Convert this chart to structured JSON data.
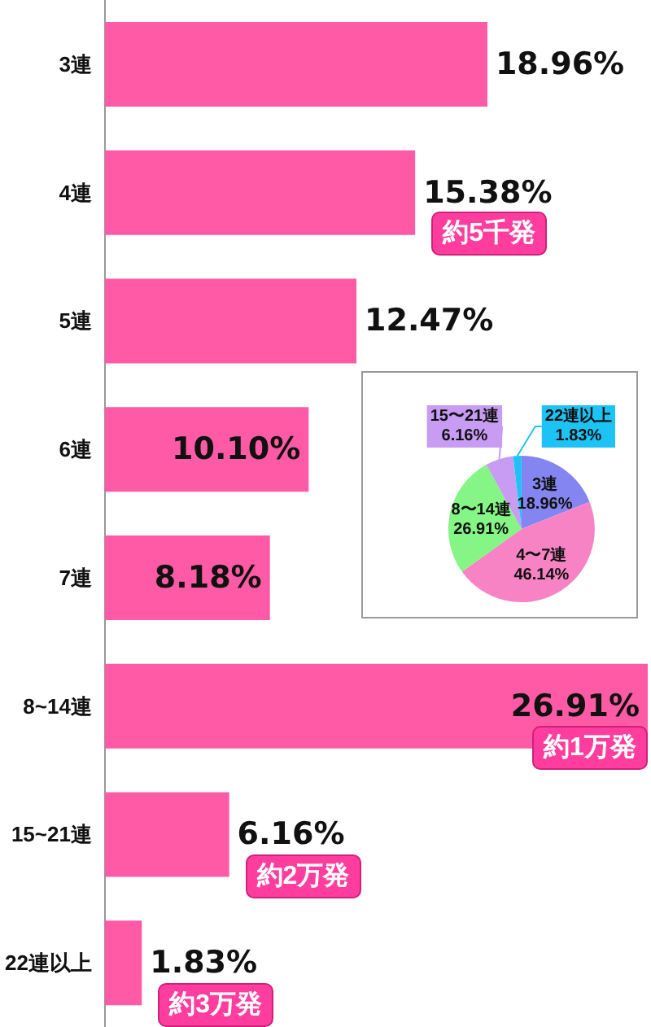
{
  "chart_data": [
    {
      "type": "bar",
      "orientation": "horizontal",
      "categories": [
        "3連",
        "4連",
        "5連",
        "6連",
        "7連",
        "8~14連",
        "15~21連",
        "22連以上"
      ],
      "values": [
        18.96,
        15.38,
        12.47,
        10.1,
        8.18,
        26.91,
        6.16,
        1.83
      ],
      "color": "#ff5aa5",
      "value_labels": [
        "18.96%",
        "15.38%",
        "12.47%",
        "10.10%",
        "8.18%",
        "26.91%",
        "6.16%",
        "1.83%"
      ],
      "grid": false,
      "legend": false,
      "annotations": [
        {
          "text": "約5千発",
          "x": 15.38,
          "y": "4連"
        },
        {
          "text": "約1万発",
          "x": 26.91,
          "y": "8~14連"
        },
        {
          "text": "約2万発",
          "x": 6.16,
          "y": "15~21連"
        },
        {
          "text": "約3万発",
          "x": 1.83,
          "y": "22連以上"
        }
      ]
    },
    {
      "type": "pie",
      "categories": [
        "3連",
        "4〜7連",
        "8〜14連",
        "15〜21連",
        "22連以上"
      ],
      "values": [
        18.96,
        46.14,
        26.91,
        6.16,
        1.83
      ],
      "colors": [
        "#8585f2",
        "#f883c4",
        "#85f585",
        "#c79cf2",
        "#1ec3f5"
      ],
      "value_labels": [
        "18.96%",
        "46.14%",
        "26.91%",
        "6.16%",
        "1.83%"
      ],
      "legend": false
    }
  ]
}
